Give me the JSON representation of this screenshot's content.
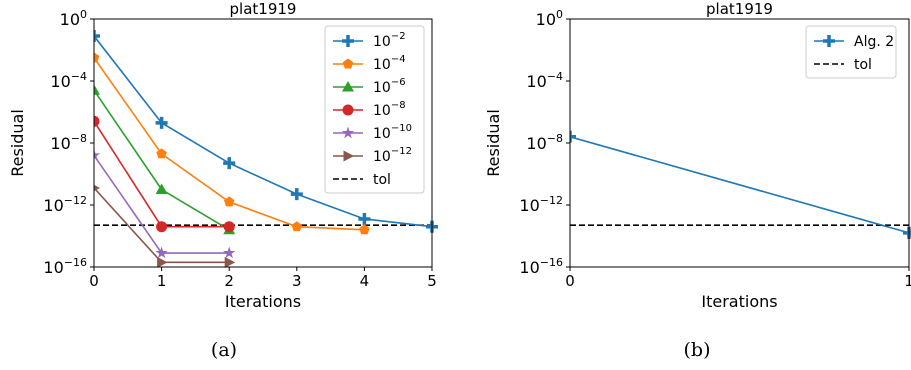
{
  "chart_data": [
    {
      "type": "line",
      "title": "plat1919",
      "xlabel": "Iterations",
      "ylabel": "Residual",
      "y_scale": "log",
      "xlim": [
        0,
        5
      ],
      "ylim_log10": [
        -16,
        0
      ],
      "x_ticks": [
        "0",
        "1",
        "2",
        "3",
        "4",
        "5"
      ],
      "y_ticks": [
        {
          "base": "10",
          "exp": "0"
        },
        {
          "base": "10",
          "exp": "−4"
        },
        {
          "base": "10",
          "exp": "−8"
        },
        {
          "base": "10",
          "exp": "−12"
        },
        {
          "base": "10",
          "exp": "−16"
        }
      ],
      "legend_position": "top-right",
      "series": [
        {
          "base": "10",
          "exp": "−2",
          "color": "#1f77b4",
          "marker": "plus",
          "x": [
            0,
            1,
            2,
            3,
            4,
            5
          ],
          "log10_y": [
            -1.1,
            -6.7,
            -9.3,
            -11.3,
            -12.9,
            -13.4
          ]
        },
        {
          "base": "10",
          "exp": "−4",
          "color": "#ff7f0e",
          "marker": "pentagon",
          "x": [
            0,
            1,
            2,
            3,
            4
          ],
          "log10_y": [
            -2.5,
            -8.7,
            -11.8,
            -13.4,
            -13.6
          ]
        },
        {
          "base": "10",
          "exp": "−6",
          "color": "#2ca02c",
          "marker": "triangle",
          "x": [
            0,
            1,
            2
          ],
          "log10_y": [
            -4.6,
            -11.0,
            -13.6
          ]
        },
        {
          "base": "10",
          "exp": "−8",
          "color": "#d62728",
          "marker": "circle",
          "x": [
            0,
            1,
            2
          ],
          "log10_y": [
            -6.6,
            -13.4,
            -13.4
          ]
        },
        {
          "base": "10",
          "exp": "−10",
          "color": "#9467bd",
          "marker": "star",
          "x": [
            0,
            1,
            2
          ],
          "log10_y": [
            -8.8,
            -15.1,
            -15.1
          ]
        },
        {
          "base": "10",
          "exp": "−12",
          "color": "#8c564b",
          "marker": "triangle-right",
          "x": [
            0,
            1,
            2
          ],
          "log10_y": [
            -10.9,
            -15.7,
            -15.7
          ]
        }
      ],
      "tol": {
        "label": "tol",
        "log10_y": -13.3,
        "color": "#000000",
        "style": "dashed"
      },
      "caption": "(a)"
    },
    {
      "type": "line",
      "title": "plat1919",
      "xlabel": "Iterations",
      "ylabel": "Residual",
      "y_scale": "log",
      "xlim": [
        0,
        1
      ],
      "ylim_log10": [
        -16,
        0
      ],
      "x_ticks": [
        "0",
        "1"
      ],
      "y_ticks": [
        {
          "base": "10",
          "exp": "0"
        },
        {
          "base": "10",
          "exp": "−4"
        },
        {
          "base": "10",
          "exp": "−8"
        },
        {
          "base": "10",
          "exp": "−12"
        },
        {
          "base": "10",
          "exp": "−16"
        }
      ],
      "legend_position": "top-right",
      "series": [
        {
          "name": "Alg. 2",
          "color": "#1f77b4",
          "marker": "plus",
          "x": [
            0,
            1
          ],
          "log10_y": [
            -7.6,
            -13.8
          ]
        }
      ],
      "tol": {
        "label": "tol",
        "log10_y": -13.3,
        "color": "#000000",
        "style": "dashed"
      },
      "caption": "(b)"
    }
  ]
}
